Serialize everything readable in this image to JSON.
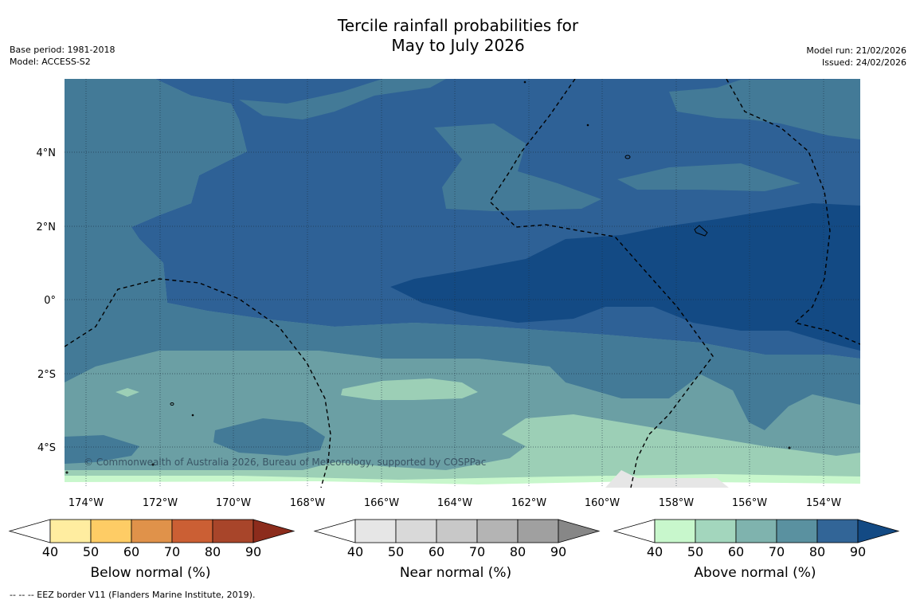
{
  "header": {
    "title_line1": "Tercile rainfall probabilities for",
    "title_line2": "May to July 2026",
    "base_period": "Base period: 1981-2018",
    "model": "Model: ACCESS-S2",
    "model_run": "Model run: 21/02/2026",
    "issued": "Issued: 24/02/2026"
  },
  "map": {
    "lon_labels": [
      "174°W",
      "172°W",
      "170°W",
      "168°W",
      "166°W",
      "164°W",
      "162°W",
      "160°W",
      "158°W",
      "156°W",
      "154°W"
    ],
    "lat_labels": [
      "4°N",
      "2°N",
      "0°",
      "2°S",
      "4°S"
    ],
    "copyright": "© Commonwealth of Australia 2026, Bureau of Meteorology, supported by COSPPac",
    "colors": {
      "above_90": "#134a84",
      "above_80": "#2e6196",
      "above_70": "#437a97",
      "above_60": "#6b9fa4",
      "above_50": "#9ccfb6",
      "above_40": "#c8f7cc",
      "near_40": "#e6e6e6",
      "blank": "#ffffff"
    }
  },
  "colorbars": [
    {
      "label": "Below normal (%)",
      "ticks": [
        "40",
        "50",
        "60",
        "70",
        "80",
        "90"
      ],
      "colors": [
        "#ffffff",
        "#ffeda0",
        "#fecc65",
        "#e0924a",
        "#cb5f34",
        "#a8452a",
        "#8c2c1c"
      ]
    },
    {
      "label": "Near normal (%)",
      "ticks": [
        "40",
        "50",
        "60",
        "70",
        "80",
        "90"
      ],
      "colors": [
        "#ffffff",
        "#e6e6e6",
        "#d9d9d9",
        "#c8c8c8",
        "#b4b4b4",
        "#a0a0a0",
        "#878787"
      ]
    },
    {
      "label": "Above normal (%)",
      "ticks": [
        "40",
        "50",
        "60",
        "70",
        "80",
        "90"
      ],
      "colors": [
        "#ffffff",
        "#c8f7cc",
        "#a3d6bd",
        "#7fb3ae",
        "#5a91a0",
        "#326597",
        "#134a84"
      ]
    }
  ],
  "footnote": "--  --  -- EEZ border V11 (Flanders Marine Institute, 2019)."
}
